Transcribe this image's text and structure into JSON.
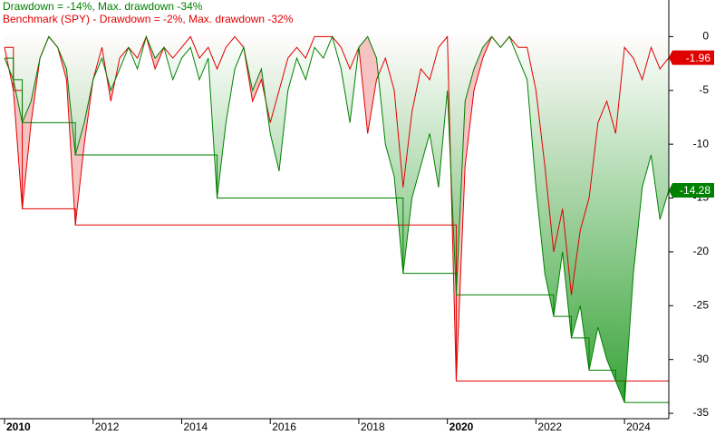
{
  "chart_data": {
    "type": "drawdown",
    "titles": [
      {
        "text": "Drawdown = -14%, Max. drawdown -34%",
        "color": "#008000"
      },
      {
        "text": "Benchmark (SPY) - Drawdown = -2%, Max. drawdown -32%",
        "color": "#e00000"
      }
    ],
    "x": [
      2010,
      2010.2,
      2010.4,
      2010.6,
      2010.8,
      2011,
      2011.2,
      2011.4,
      2011.6,
      2011.8,
      2012,
      2012.2,
      2012.4,
      2012.6,
      2012.8,
      2013,
      2013.2,
      2013.4,
      2013.6,
      2013.8,
      2014,
      2014.2,
      2014.4,
      2014.6,
      2014.8,
      2015,
      2015.2,
      2015.4,
      2015.6,
      2015.8,
      2016,
      2016.2,
      2016.4,
      2016.6,
      2016.8,
      2017,
      2017.2,
      2017.4,
      2017.6,
      2017.8,
      2018,
      2018.2,
      2018.4,
      2018.6,
      2018.8,
      2019,
      2019.2,
      2019.4,
      2019.6,
      2019.8,
      2020,
      2020.2,
      2020.4,
      2020.6,
      2020.8,
      2021,
      2021.2,
      2021.4,
      2021.6,
      2021.8,
      2022,
      2022.2,
      2022.4,
      2022.6,
      2022.8,
      2023,
      2023.2,
      2023.4,
      2023.6,
      2023.8,
      2024,
      2024.2,
      2024.4,
      2024.6,
      2024.8,
      2025
    ],
    "series": [
      {
        "color": "#e00000",
        "fill": "#f4b4b4",
        "values": [
          -1,
          -5,
          -16,
          -8,
          -2,
          0,
          -1,
          -4,
          -17.5,
          -10,
          -4,
          -1,
          -6,
          -2,
          -1,
          -2,
          0,
          -3,
          -1,
          -2,
          -1,
          0,
          -2,
          -1,
          -3,
          -1,
          0,
          -1,
          -6,
          -4,
          -8,
          -5,
          -2,
          -1,
          -2,
          0,
          0,
          0,
          -1,
          -3,
          -1,
          -9,
          -4,
          -2,
          -5,
          -14,
          -7,
          -3,
          -4,
          -1,
          0,
          -32,
          -12,
          -5,
          -2,
          0,
          -1,
          0,
          -1,
          -1,
          -5,
          -12,
          -20,
          -16,
          -24,
          -18,
          -15,
          -8,
          -6,
          -9,
          -1,
          -2,
          -4,
          -1,
          -3,
          -1.96
        ],
        "max_values": [
          -1,
          -5,
          -16,
          -16,
          -16,
          -16,
          -16,
          -16,
          -17.5,
          -17.5,
          -17.5,
          -17.5,
          -17.5,
          -17.5,
          -17.5,
          -17.5,
          -17.5,
          -17.5,
          -17.5,
          -17.5,
          -17.5,
          -17.5,
          -17.5,
          -17.5,
          -17.5,
          -17.5,
          -17.5,
          -17.5,
          -17.5,
          -17.5,
          -17.5,
          -17.5,
          -17.5,
          -17.5,
          -17.5,
          -17.5,
          -17.5,
          -17.5,
          -17.5,
          -17.5,
          -17.5,
          -17.5,
          -17.5,
          -17.5,
          -17.5,
          -17.5,
          -17.5,
          -17.5,
          -17.5,
          -17.5,
          -17.5,
          -32,
          -32,
          -32,
          -32,
          -32,
          -32,
          -32,
          -32,
          -32,
          -32,
          -32,
          -32,
          -32,
          -32,
          -32,
          -32,
          -32,
          -32,
          -32,
          -32,
          -32,
          -32,
          -32,
          -32,
          -32
        ]
      },
      {
        "color": "#008000",
        "fill": "#2e9e2e",
        "values": [
          -2,
          -4,
          -8,
          -6,
          -2,
          0,
          -1,
          -3,
          -11,
          -8,
          -4,
          -2,
          -5,
          -3,
          -1,
          -3,
          0,
          -2,
          -1,
          -4,
          -2,
          -1,
          -4,
          -2,
          -15,
          -8,
          -3,
          -1,
          -5,
          -3,
          -9,
          -12.5,
          -5,
          -2,
          -4,
          -1,
          -2,
          0,
          -3,
          -8,
          -1,
          0,
          -2,
          -10,
          -13,
          -22,
          -15,
          -12,
          -9,
          -14,
          -5,
          -24,
          -6,
          -3,
          -1,
          0,
          -1,
          0,
          -2,
          -4,
          -14,
          -22,
          -26,
          -20,
          -28,
          -25,
          -31,
          -27,
          -30,
          -32,
          -34,
          -22,
          -14,
          -11,
          -17,
          -14.28
        ],
        "max_values": [
          -2,
          -4,
          -8,
          -8,
          -8,
          -8,
          -8,
          -8,
          -11,
          -11,
          -11,
          -11,
          -11,
          -11,
          -11,
          -11,
          -11,
          -11,
          -11,
          -11,
          -11,
          -11,
          -11,
          -11,
          -15,
          -15,
          -15,
          -15,
          -15,
          -15,
          -15,
          -15,
          -15,
          -15,
          -15,
          -15,
          -15,
          -15,
          -15,
          -15,
          -15,
          -15,
          -15,
          -15,
          -15,
          -22,
          -22,
          -22,
          -22,
          -22,
          -22,
          -24,
          -24,
          -24,
          -24,
          -24,
          -24,
          -24,
          -24,
          -24,
          -24,
          -24,
          -26,
          -26,
          -28,
          -28,
          -31,
          -31,
          -31,
          -32,
          -34,
          -34,
          -34,
          -34,
          -34,
          -34
        ]
      }
    ],
    "xlim": [
      2010,
      2025
    ],
    "xticks": [
      2010,
      2012,
      2014,
      2016,
      2018,
      2020,
      2022,
      2024
    ],
    "ylim": [
      -35.5,
      3.4
    ],
    "yticks": [
      0,
      -5,
      -10,
      -15,
      -20,
      -25,
      -30,
      -35
    ]
  }
}
